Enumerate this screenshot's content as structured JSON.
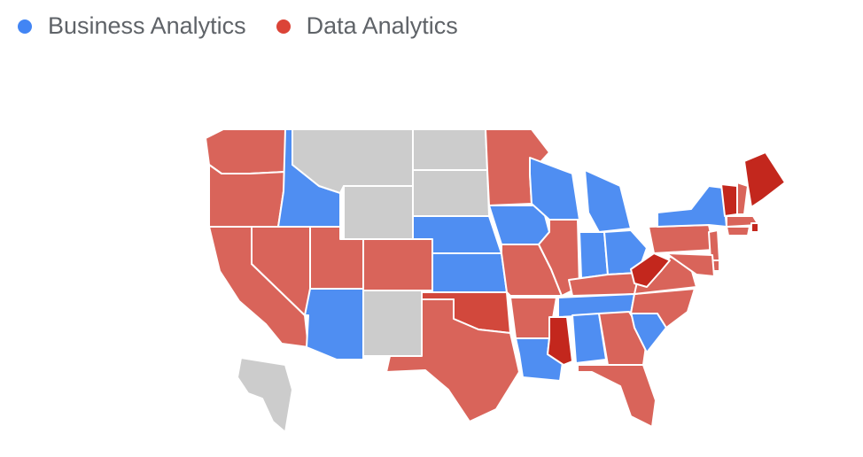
{
  "legend": [
    {
      "label": "Business Analytics",
      "color": "#4285f4"
    },
    {
      "label": "Data Analytics",
      "color": "#db4437"
    }
  ],
  "colors": {
    "business": "#4f8ef2",
    "data": "#d9645a",
    "data_strong": "#c3271d",
    "data_medium": "#d2483c",
    "no_data": "#cccccc"
  },
  "map_data": {
    "type": "us-state-choropleth",
    "categories": [
      "Business Analytics",
      "Data Analytics"
    ],
    "states": [
      {
        "name": "Washington",
        "group": "data"
      },
      {
        "name": "Oregon",
        "group": "data"
      },
      {
        "name": "California",
        "group": "data"
      },
      {
        "name": "Idaho",
        "group": "business"
      },
      {
        "name": "Nevada",
        "group": "data"
      },
      {
        "name": "Utah",
        "group": "data"
      },
      {
        "name": "Arizona",
        "group": "business"
      },
      {
        "name": "Montana",
        "group": "no_data"
      },
      {
        "name": "Wyoming",
        "group": "no_data"
      },
      {
        "name": "Colorado",
        "group": "data"
      },
      {
        "name": "New Mexico",
        "group": "no_data"
      },
      {
        "name": "North Dakota",
        "group": "no_data"
      },
      {
        "name": "South Dakota",
        "group": "no_data"
      },
      {
        "name": "Nebraska",
        "group": "business"
      },
      {
        "name": "Kansas",
        "group": "business"
      },
      {
        "name": "Oklahoma",
        "group": "data_medium"
      },
      {
        "name": "Texas",
        "group": "data"
      },
      {
        "name": "Minnesota",
        "group": "data"
      },
      {
        "name": "Iowa",
        "group": "business"
      },
      {
        "name": "Missouri",
        "group": "data"
      },
      {
        "name": "Arkansas",
        "group": "data"
      },
      {
        "name": "Louisiana",
        "group": "business"
      },
      {
        "name": "Wisconsin",
        "group": "business"
      },
      {
        "name": "Illinois",
        "group": "data"
      },
      {
        "name": "Michigan",
        "group": "business"
      },
      {
        "name": "Indiana",
        "group": "business"
      },
      {
        "name": "Ohio",
        "group": "business"
      },
      {
        "name": "Kentucky",
        "group": "data"
      },
      {
        "name": "Tennessee",
        "group": "business"
      },
      {
        "name": "Mississippi",
        "group": "data_strong"
      },
      {
        "name": "Alabama",
        "group": "business"
      },
      {
        "name": "Georgia",
        "group": "data"
      },
      {
        "name": "Florida",
        "group": "data"
      },
      {
        "name": "South Carolina",
        "group": "business"
      },
      {
        "name": "North Carolina",
        "group": "data"
      },
      {
        "name": "Virginia",
        "group": "data"
      },
      {
        "name": "West Virginia",
        "group": "data_strong"
      },
      {
        "name": "Pennsylvania",
        "group": "data"
      },
      {
        "name": "New York",
        "group": "business"
      },
      {
        "name": "Vermont",
        "group": "data_strong"
      },
      {
        "name": "New Hampshire",
        "group": "data"
      },
      {
        "name": "Maine",
        "group": "data_strong"
      },
      {
        "name": "Massachusetts",
        "group": "data"
      },
      {
        "name": "Rhode Island",
        "group": "data_strong"
      },
      {
        "name": "Connecticut",
        "group": "data"
      },
      {
        "name": "New Jersey",
        "group": "data"
      },
      {
        "name": "Delaware",
        "group": "data"
      },
      {
        "name": "Maryland",
        "group": "data"
      },
      {
        "name": "Alaska",
        "group": "no_data"
      }
    ]
  }
}
